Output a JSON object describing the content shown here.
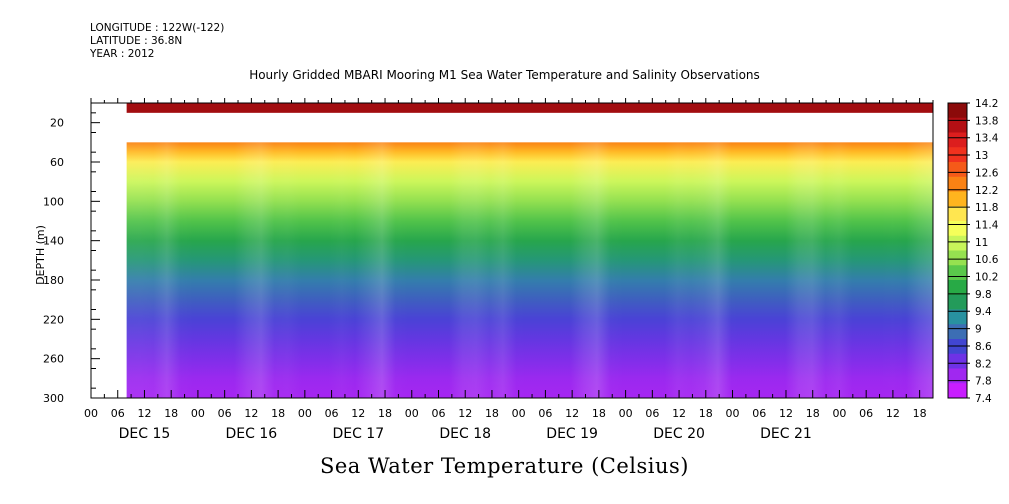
{
  "header": {
    "longitude": "LONGITUDE : 122W(-122)",
    "latitude": "LATITUDE : 36.8N",
    "year": "YEAR : 2012"
  },
  "chart_data": {
    "type": "heatmap",
    "title": "Hourly Gridded MBARI Mooring M1 Sea Water Temperature and Salinity Observations",
    "subtitle": "Sea Water Temperature (Celsius)",
    "ylabel": "DEPTH (m)",
    "ylim": [
      0,
      300
    ],
    "y_inverted": true,
    "y_ticks": [
      20,
      60,
      100,
      140,
      180,
      220,
      260,
      300
    ],
    "x_hour_ticks": [
      "00",
      "06",
      "12",
      "18",
      "00",
      "06",
      "12",
      "18",
      "00",
      "06",
      "12",
      "18",
      "00",
      "06",
      "12",
      "18",
      "00",
      "06",
      "12",
      "18",
      "00",
      "06",
      "12",
      "18",
      "00",
      "06",
      "12",
      "18",
      "00",
      "06",
      "12",
      "18"
    ],
    "x_start_hour": 0,
    "x_end_hour": 189,
    "x_day_labels": [
      {
        "label": "DEC 15",
        "center_hour": 12
      },
      {
        "label": "DEC 16",
        "center_hour": 36
      },
      {
        "label": "DEC 17",
        "center_hour": 60
      },
      {
        "label": "DEC 18",
        "center_hour": 84
      },
      {
        "label": "DEC 19",
        "center_hour": 108
      },
      {
        "label": "DEC 20",
        "center_hour": 132
      },
      {
        "label": "DEC 21",
        "center_hour": 156
      }
    ],
    "data_start_hour": 8,
    "surface_layer": {
      "depth_range": [
        0,
        10
      ],
      "value": 14.0
    },
    "missing_depth_range": [
      10,
      40
    ],
    "profile": {
      "depths": [
        40,
        50,
        60,
        80,
        100,
        120,
        140,
        160,
        180,
        200,
        220,
        240,
        260,
        280,
        300
      ],
      "values": [
        12.4,
        12.0,
        11.6,
        11.0,
        10.6,
        10.2,
        9.8,
        9.4,
        9.0,
        8.7,
        8.4,
        8.2,
        8.0,
        7.8,
        7.7
      ]
    },
    "colorbar": {
      "labels": [
        "14.2",
        "13.8",
        "13.4",
        "13",
        "12.6",
        "12.2",
        "11.8",
        "11.4",
        "11",
        "10.6",
        "10.2",
        "9.8",
        "9.4",
        "9",
        "8.6",
        "8.2",
        "7.8",
        "7.4"
      ],
      "colors": [
        "#8b0a0a",
        "#b40f14",
        "#dc1e1e",
        "#f0321e",
        "#f55a19",
        "#fa8214",
        "#ffb41e",
        "#ffe650",
        "#f5ff5a",
        "#c8f55a",
        "#96e150",
        "#5ac84b",
        "#28aa46",
        "#239b5a",
        "#2891a0",
        "#3c6eb4",
        "#4146d2",
        "#6e32e6",
        "#a028f0",
        "#c81eff"
      ]
    }
  }
}
